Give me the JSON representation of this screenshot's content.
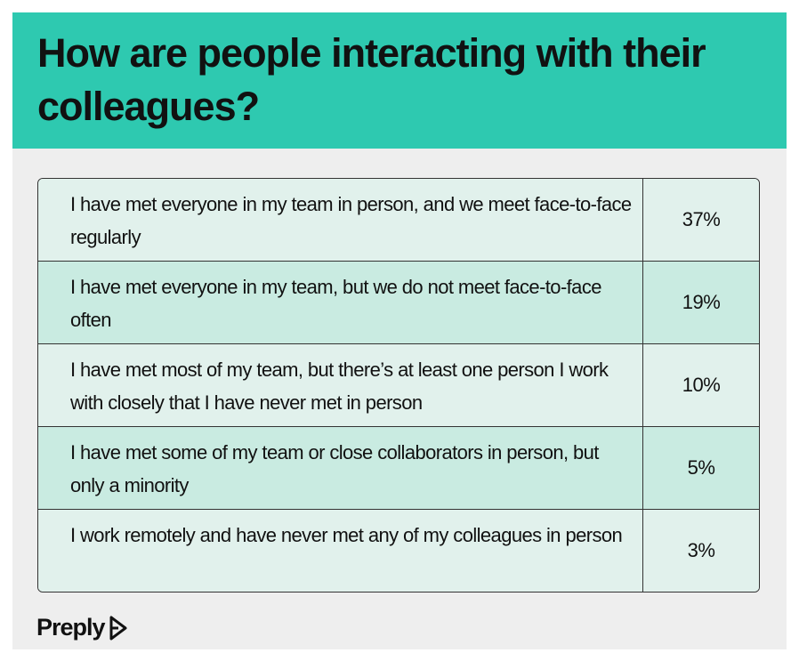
{
  "header": {
    "title": "How are people interacting with their colleagues?"
  },
  "table": {
    "rows": [
      [
        "I have met everyone in my team in person, and we meet face-to-face regularly",
        "37%"
      ],
      [
        "I have met everyone in my team, but we do not meet face-to-face often",
        "19%"
      ],
      [
        "I have met most of my team, but there’s at least one person I work with closely that I have never met in person",
        "10%"
      ],
      [
        "I have met some of my team or close collaborators in person, but only a minority",
        "5%"
      ],
      [
        "I work remotely and have never met any of my colleagues in person",
        "3%"
      ]
    ]
  },
  "footer": {
    "logo": "Preply"
  }
}
